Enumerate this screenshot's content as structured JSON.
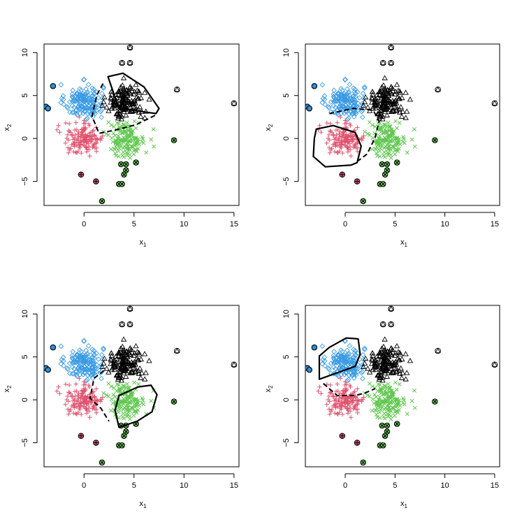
{
  "chart_data": [
    {
      "type": "scatter",
      "panel": 1,
      "xlabel": "x",
      "xlabel_sub": "1",
      "ylabel": "x",
      "ylabel_sub": "2",
      "xlim": [
        -4,
        15.5
      ],
      "ylim": [
        -7.8,
        11
      ],
      "xticks": [
        0,
        5,
        10,
        15
      ],
      "yticks": [
        -5,
        0,
        5,
        10
      ],
      "highlight_cluster": "black",
      "hull_solid": [
        [
          2.4,
          7.2
        ],
        [
          3.9,
          7.6
        ],
        [
          6.0,
          6.0
        ],
        [
          7.5,
          3.5
        ],
        [
          7.2,
          2.9
        ],
        [
          3.5,
          3.5
        ],
        [
          2.6,
          6.5
        ]
      ],
      "boundary_dashed": [
        [
          1.9,
          6.4
        ],
        [
          1.3,
          5.1
        ],
        [
          0.8,
          2.6
        ],
        [
          1.5,
          0.6
        ],
        [
          3.2,
          1.0
        ],
        [
          5.2,
          1.6
        ],
        [
          7.3,
          2.8
        ]
      ]
    },
    {
      "type": "scatter",
      "panel": 2,
      "xlabel": "x",
      "xlabel_sub": "1",
      "ylabel": "x",
      "ylabel_sub": "2",
      "xlim": [
        -4,
        15.5
      ],
      "ylim": [
        -7.8,
        11
      ],
      "xticks": [
        0,
        5,
        10,
        15
      ],
      "yticks": [
        -5,
        0,
        5,
        10
      ],
      "highlight_cluster": "red",
      "hull_solid": [
        [
          -2.9,
          1.1
        ],
        [
          -1.2,
          1.5
        ],
        [
          1.0,
          0.7
        ],
        [
          1.6,
          -0.9
        ],
        [
          1.2,
          -2.8
        ],
        [
          0.6,
          -3.1
        ],
        [
          -2.0,
          -3.3
        ],
        [
          -3.2,
          -2.1
        ],
        [
          -3.1,
          0.0
        ]
      ],
      "boundary_dashed": [
        [
          -1.6,
          2.9
        ],
        [
          0.8,
          3.5
        ],
        [
          2.8,
          3.3
        ],
        [
          3.4,
          2.0
        ],
        [
          3.0,
          0.1
        ],
        [
          2.2,
          -1.8
        ],
        [
          1.3,
          -2.6
        ]
      ]
    },
    {
      "type": "scatter",
      "panel": 3,
      "xlabel": "x",
      "xlabel_sub": "1",
      "ylabel": "x",
      "ylabel_sub": "2",
      "xlim": [
        -4,
        15.5
      ],
      "ylim": [
        -7.8,
        11
      ],
      "xticks": [
        0,
        5,
        10,
        15
      ],
      "yticks": [
        -5,
        0,
        5,
        10
      ],
      "highlight_cluster": "green",
      "hull_solid": [
        [
          3.5,
          0.5
        ],
        [
          5.4,
          1.5
        ],
        [
          6.7,
          1.7
        ],
        [
          7.3,
          0.6
        ],
        [
          6.8,
          -1.4
        ],
        [
          5.3,
          -2.5
        ],
        [
          3.5,
          -3.2
        ],
        [
          3.1,
          -1.2
        ]
      ],
      "boundary_dashed": [
        [
          2.0,
          3.4
        ],
        [
          1.0,
          2.5
        ],
        [
          0.6,
          0.2
        ],
        [
          1.7,
          -1.0
        ],
        [
          2.5,
          -2.5
        ]
      ]
    },
    {
      "type": "scatter",
      "panel": 4,
      "xlabel": "x",
      "xlabel_sub": "1",
      "ylabel": "x",
      "ylabel_sub": "2",
      "xlim": [
        -4,
        15.5
      ],
      "ylim": [
        -7.8,
        11
      ],
      "xticks": [
        0,
        5,
        10,
        15
      ],
      "yticks": [
        -5,
        0,
        5,
        10
      ],
      "highlight_cluster": "blue",
      "hull_solid": [
        [
          -2.6,
          5.1
        ],
        [
          -1.6,
          6.1
        ],
        [
          0.1,
          7.2
        ],
        [
          1.3,
          7.1
        ],
        [
          1.5,
          5.3
        ],
        [
          1.0,
          3.9
        ],
        [
          -2.6,
          2.4
        ]
      ],
      "boundary_dashed": [
        [
          -2.2,
          1.9
        ],
        [
          -0.8,
          0.5
        ],
        [
          1.0,
          0.5
        ],
        [
          2.0,
          0.8
        ],
        [
          3.0,
          1.3
        ]
      ]
    }
  ],
  "series_style": {
    "blue": {
      "color": "#3a9be3",
      "marker": "diamond"
    },
    "red": {
      "color": "#e0536f",
      "marker": "plus"
    },
    "green": {
      "color": "#61c750",
      "marker": "cross"
    },
    "black": {
      "color": "#000000",
      "marker": "triangle"
    }
  },
  "clusters": {
    "blue": {
      "center": [
        0.0,
        4.3
      ],
      "sd": [
        0.95,
        1.0
      ],
      "n": 150,
      "xmin": -2.7,
      "xmax": 2.1,
      "ymin": 2.0,
      "ymax": 7.2
    },
    "black": {
      "center": [
        4.1,
        4.2
      ],
      "sd": [
        0.95,
        1.05
      ],
      "n": 150,
      "xmin": 1.8,
      "xmax": 7.4,
      "ymin": 2.2,
      "ymax": 7.5
    },
    "red": {
      "center": [
        0.0,
        0.0
      ],
      "sd": [
        1.0,
        0.95
      ],
      "n": 150,
      "xmin": -2.9,
      "xmax": 2.6,
      "ymin": -3.2,
      "ymax": 2.5
    },
    "green": {
      "center": [
        4.2,
        0.0
      ],
      "sd": [
        0.95,
        1.05
      ],
      "n": 150,
      "xmin": 1.8,
      "xmax": 7.4,
      "ymin": -3.3,
      "ymax": 2.3
    }
  },
  "outliers": [
    {
      "cluster": "blue",
      "x": -3.1,
      "y": 6.1
    },
    {
      "cluster": "blue",
      "x": -3.8,
      "y": 3.7
    },
    {
      "cluster": "blue",
      "x": -3.6,
      "y": 3.5
    },
    {
      "cluster": "black",
      "x": 4.6,
      "y": 10.6
    },
    {
      "cluster": "black",
      "x": 3.8,
      "y": 8.8
    },
    {
      "cluster": "black",
      "x": 4.6,
      "y": 8.8
    },
    {
      "cluster": "black",
      "x": 9.3,
      "y": 5.7
    },
    {
      "cluster": "black",
      "x": 15.0,
      "y": 4.1
    },
    {
      "cluster": "red",
      "x": -0.3,
      "y": -4.2
    },
    {
      "cluster": "red",
      "x": 1.2,
      "y": -5.0
    },
    {
      "cluster": "green",
      "x": 9.0,
      "y": -0.2
    },
    {
      "cluster": "green",
      "x": 3.7,
      "y": -3.0
    },
    {
      "cluster": "green",
      "x": 4.2,
      "y": -3.0
    },
    {
      "cluster": "green",
      "x": 5.2,
      "y": -2.8
    },
    {
      "cluster": "green",
      "x": 4.2,
      "y": -3.7
    },
    {
      "cluster": "green",
      "x": 4.0,
      "y": -4.2
    },
    {
      "cluster": "green",
      "x": 3.5,
      "y": -5.3
    },
    {
      "cluster": "green",
      "x": 3.8,
      "y": -5.3
    },
    {
      "cluster": "green",
      "x": 1.8,
      "y": -7.3
    }
  ]
}
